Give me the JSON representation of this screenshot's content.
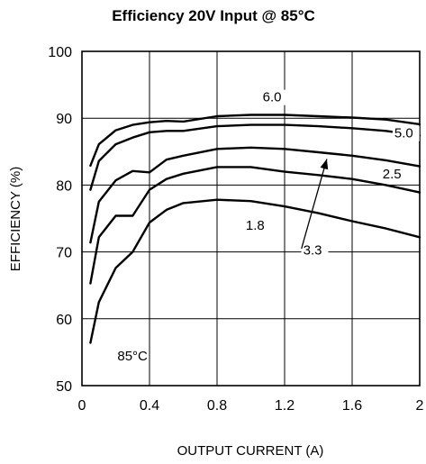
{
  "chart_data": {
    "type": "line",
    "title": "Efficiency 20V Input @ 85°C",
    "xlabel": "OUTPUT CURRENT (A)",
    "ylabel": "EFFICIENCY (%)",
    "xlim": [
      0,
      2
    ],
    "ylim": [
      50,
      100
    ],
    "xticks": [
      0,
      0.4,
      0.8,
      1.2,
      1.6,
      2
    ],
    "xtick_labels": [
      "0",
      "0.4",
      "0.8",
      "1.2",
      "1.6",
      "2"
    ],
    "yticks": [
      50,
      60,
      70,
      80,
      90,
      100
    ],
    "ytick_labels": [
      "50",
      "60",
      "70",
      "80",
      "90",
      "100"
    ],
    "grid": true,
    "legend": "none",
    "series": [
      {
        "name": "6.0",
        "x": [
          0.05,
          0.1,
          0.2,
          0.3,
          0.4,
          0.5,
          0.6,
          0.8,
          1.0,
          1.2,
          1.4,
          1.6,
          1.8,
          2.0
        ],
        "y": [
          82.9,
          86.1,
          88.2,
          89.0,
          89.4,
          89.6,
          89.5,
          90.3,
          90.5,
          90.5,
          90.3,
          90.1,
          89.8,
          89.1
        ]
      },
      {
        "name": "5.0",
        "x": [
          0.05,
          0.1,
          0.2,
          0.3,
          0.4,
          0.5,
          0.6,
          0.8,
          1.0,
          1.2,
          1.4,
          1.6,
          1.8,
          2.0
        ],
        "y": [
          79.3,
          83.6,
          86.1,
          87.1,
          87.9,
          88.1,
          88.1,
          88.8,
          89.0,
          89.0,
          88.8,
          88.5,
          88.1,
          87.4
        ]
      },
      {
        "name": "3.3",
        "x": [
          0.05,
          0.1,
          0.2,
          0.3,
          0.4,
          0.5,
          0.6,
          0.8,
          1.0,
          1.2,
          1.4,
          1.6,
          1.8,
          2.0
        ],
        "y": [
          71.4,
          77.5,
          80.7,
          82.1,
          81.9,
          83.8,
          84.4,
          85.4,
          85.6,
          85.4,
          84.9,
          84.4,
          83.7,
          82.8
        ]
      },
      {
        "name": "2.5",
        "x": [
          0.05,
          0.1,
          0.2,
          0.3,
          0.4,
          0.5,
          0.6,
          0.8,
          1.0,
          1.2,
          1.4,
          1.6,
          1.8,
          2.0
        ],
        "y": [
          65.3,
          72.2,
          75.4,
          75.4,
          79.3,
          80.9,
          81.7,
          82.7,
          82.7,
          82.0,
          81.5,
          80.9,
          80.0,
          78.9
        ]
      },
      {
        "name": "1.8",
        "x": [
          0.05,
          0.1,
          0.2,
          0.3,
          0.4,
          0.5,
          0.6,
          0.8,
          1.0,
          1.2,
          1.4,
          1.6,
          1.8,
          2.0
        ],
        "y": [
          56.4,
          62.5,
          67.6,
          70.0,
          74.4,
          76.3,
          77.3,
          77.8,
          77.6,
          76.8,
          75.8,
          74.6,
          73.5,
          72.2
        ]
      }
    ],
    "annotations": [
      {
        "text": "6.0",
        "x": 1.07,
        "y": 92.5
      },
      {
        "text": "5.0",
        "x": 1.85,
        "y": 87.1
      },
      {
        "text": "2.5",
        "x": 1.78,
        "y": 81.0
      },
      {
        "text": "1.8",
        "x": 0.97,
        "y": 73.3
      },
      {
        "text": "3.3",
        "x": 1.31,
        "y": 69.6
      },
      {
        "text": "85°C",
        "x": 0.21,
        "y": 53.8
      }
    ],
    "arrow": {
      "from": [
        1.3,
        70.5
      ],
      "to": [
        1.45,
        83.9
      ]
    }
  }
}
